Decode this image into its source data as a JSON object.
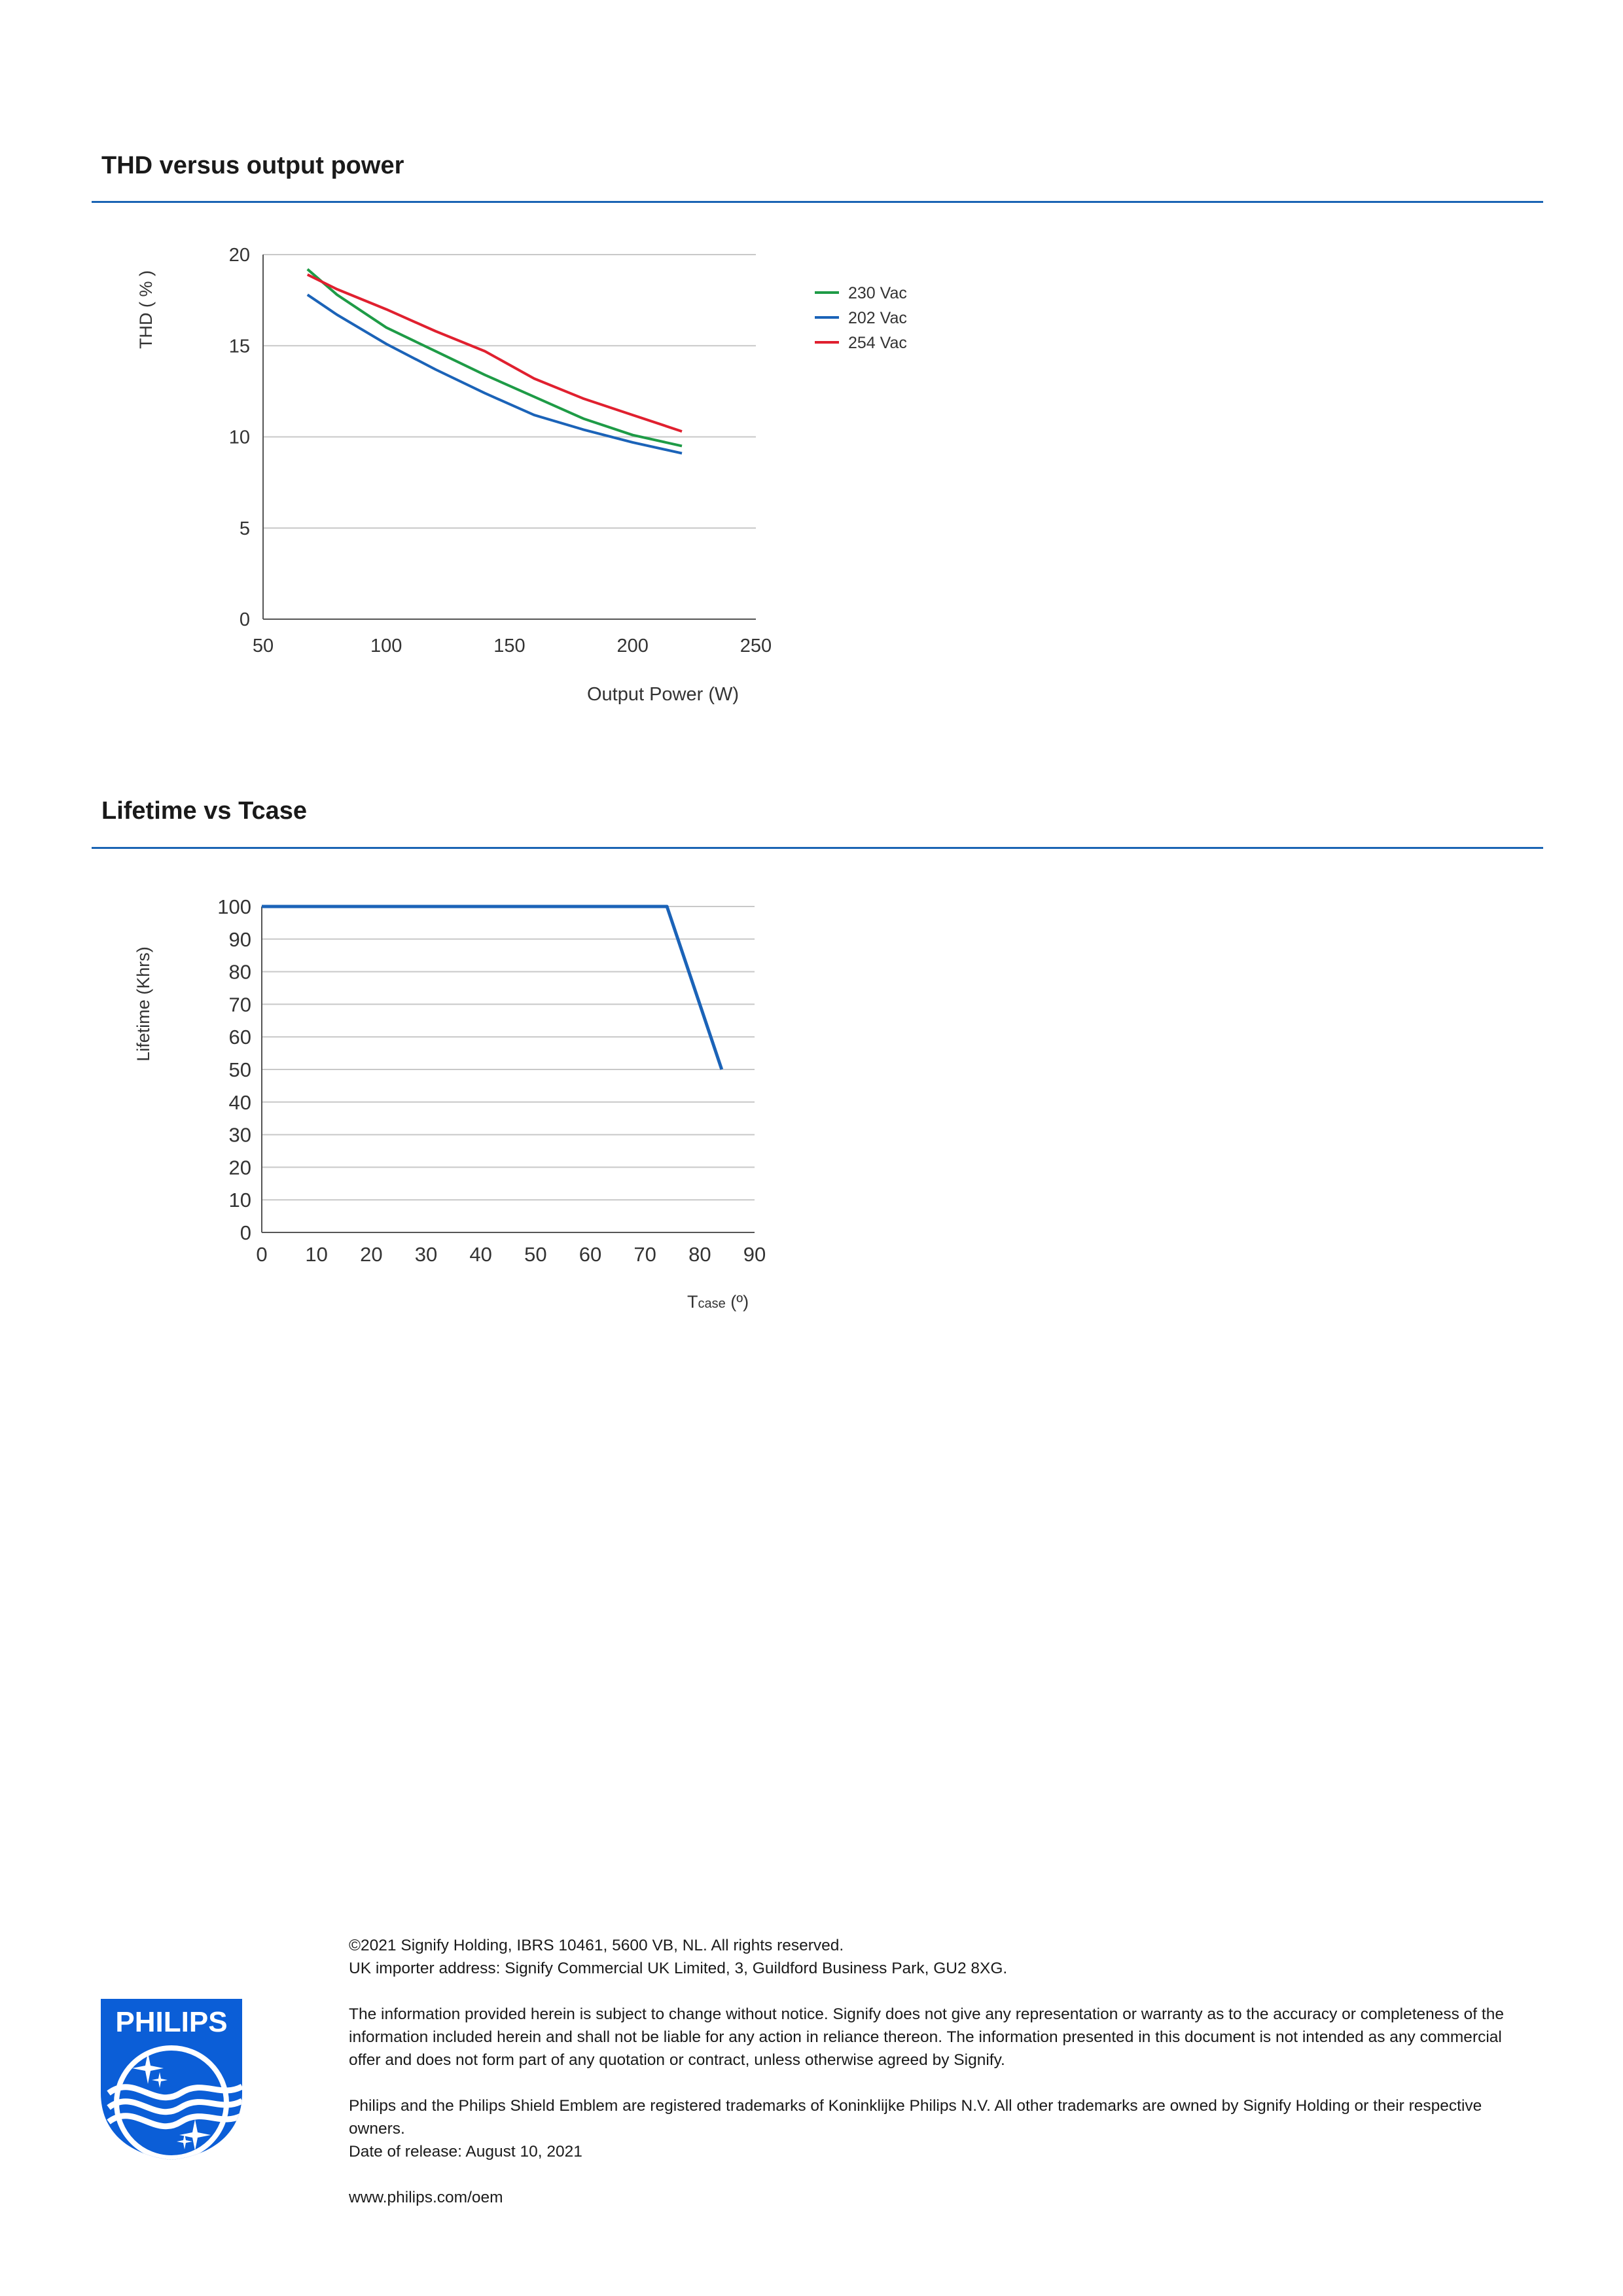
{
  "sections": {
    "thd": {
      "title": "THD versus output power"
    },
    "lifetime": {
      "title": "Lifetime vs Tcase"
    }
  },
  "chart_data": [
    {
      "type": "line",
      "xlabel": "Output Power (W)",
      "ylabel": "THD ( % )",
      "xlim": [
        50,
        250
      ],
      "ylim": [
        0,
        20
      ],
      "x_ticks": [
        "50",
        "100",
        "150",
        "200",
        "250"
      ],
      "y_ticks": [
        "0",
        "5",
        "10",
        "15",
        "20"
      ],
      "grid": "horizontal",
      "legend_position": "top-right",
      "series": [
        {
          "name": "230 Vac",
          "color": "#1e9b46",
          "x": [
            68,
            80,
            100,
            120,
            140,
            160,
            180,
            200,
            220
          ],
          "y": [
            19.2,
            17.8,
            16.0,
            14.7,
            13.4,
            12.2,
            11.0,
            10.1,
            9.5
          ]
        },
        {
          "name": "202 Vac",
          "color": "#1b63b8",
          "x": [
            68,
            80,
            100,
            120,
            140,
            160,
            180,
            200,
            220
          ],
          "y": [
            17.8,
            16.7,
            15.1,
            13.7,
            12.4,
            11.2,
            10.4,
            9.7,
            9.1
          ]
        },
        {
          "name": "254 Vac",
          "color": "#e0202f",
          "x": [
            68,
            80,
            100,
            120,
            140,
            160,
            180,
            200,
            220
          ],
          "y": [
            18.9,
            18.1,
            17.0,
            15.8,
            14.7,
            13.2,
            12.1,
            11.2,
            10.3
          ]
        }
      ]
    },
    {
      "type": "line",
      "xlabel": "Tcase",
      "xlabel_sub": "case",
      "xlabel_prefix": "T",
      "xlabel_unit": " (º)",
      "ylabel": "Lifetime (Khrs)",
      "xlim": [
        0,
        90
      ],
      "ylim": [
        0,
        100
      ],
      "x_ticks": [
        "0",
        "10",
        "20",
        "30",
        "40",
        "50",
        "60",
        "70",
        "80",
        "90"
      ],
      "y_ticks": [
        "0",
        "10",
        "20",
        "30",
        "40",
        "50",
        "60",
        "70",
        "80",
        "90",
        "100"
      ],
      "grid": "horizontal",
      "series": [
        {
          "color": "#1b63b8",
          "x": [
            0,
            74,
            84
          ],
          "y": [
            100,
            100,
            50
          ]
        }
      ]
    }
  ],
  "footer": {
    "copyright": "©2021 Signify Holding, IBRS 10461, 5600 VB, NL. All rights reserved.",
    "importer": "UK importer address: Signify Commercial UK Limited, 3, Guildford Business Park, GU2 8XG.",
    "disclaimer": "The information provided herein is subject to change without notice. Signify does not give any representation or warranty as to the accuracy or completeness of the information included herein and shall not be liable for any action in reliance thereon. The information presented in this document is not intended as any commercial offer and does not form part of any quotation or contract, unless otherwise agreed by Signify.",
    "trademarks": "Philips and the Philips Shield Emblem are registered trademarks of Koninklijke Philips N.V. All other trademarks are owned by Signify Holding or their respective owners.",
    "release_date": "Date of release: August 10, 2021",
    "website": "www.philips.com/oem"
  },
  "logo": {
    "wordmark": "PHILIPS",
    "color": "#0b5ed7"
  }
}
